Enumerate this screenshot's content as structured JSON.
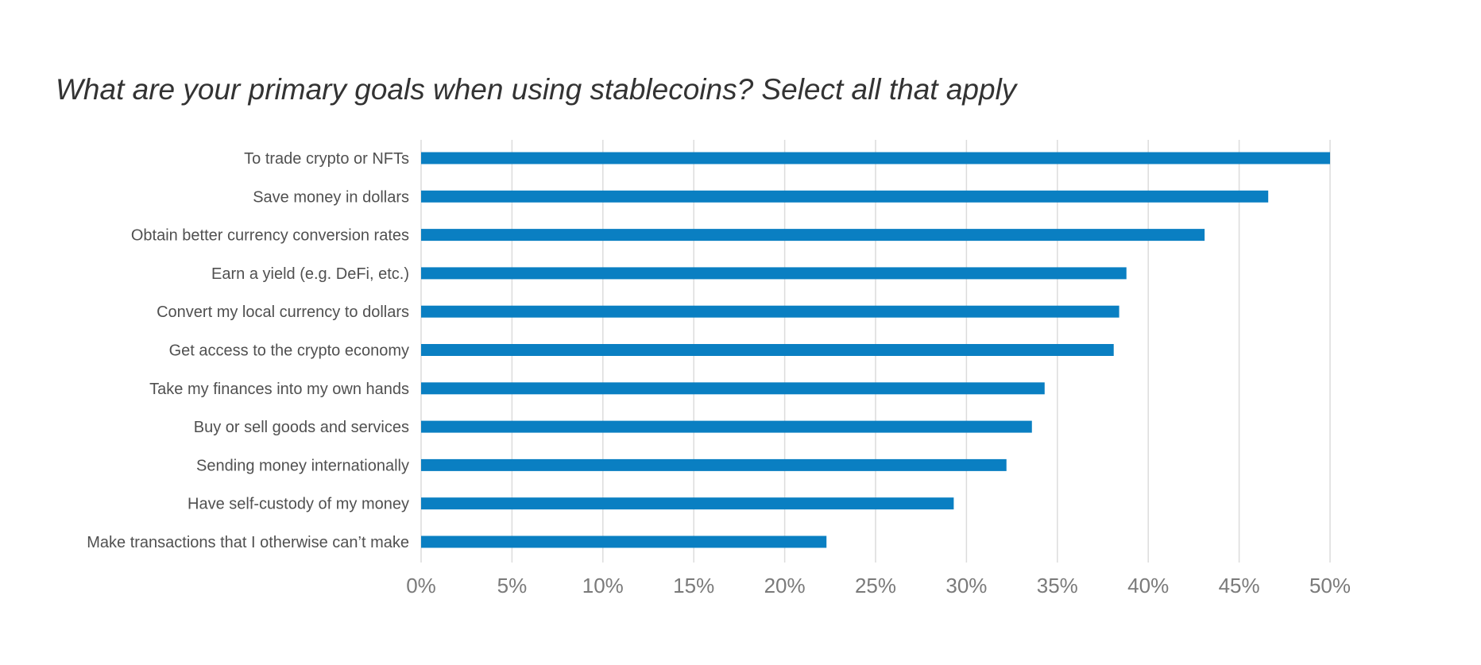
{
  "chart_data": {
    "type": "bar",
    "orientation": "horizontal",
    "title": "What are your primary goals when using stablecoins? Select all that apply",
    "categories": [
      "To trade crypto or NFTs",
      "Save money in dollars",
      "Obtain better currency conversion rates",
      "Earn a yield (e.g. DeFi, etc.)",
      "Convert my local currency to dollars",
      "Get access to the crypto economy",
      "Take my finances into my own hands",
      "Buy or sell goods and services",
      "Sending money internationally",
      "Have self-custody of my money",
      "Make transactions that I otherwise can’t make"
    ],
    "values": [
      50.0,
      46.6,
      43.1,
      38.8,
      38.4,
      38.1,
      34.3,
      33.6,
      32.2,
      29.3,
      22.3
    ],
    "xlim": [
      0,
      50
    ],
    "xticks": [
      0,
      5,
      10,
      15,
      20,
      25,
      30,
      35,
      40,
      45,
      50
    ],
    "xtick_labels": [
      "0%",
      "5%",
      "10%",
      "15%",
      "20%",
      "25%",
      "30%",
      "35%",
      "40%",
      "45%",
      "50%"
    ],
    "xlabel": "",
    "ylabel": "",
    "grid": "vertical",
    "legend": "none",
    "bar_color": "#0a7fc2",
    "grid_color": "#dcdcdc"
  }
}
